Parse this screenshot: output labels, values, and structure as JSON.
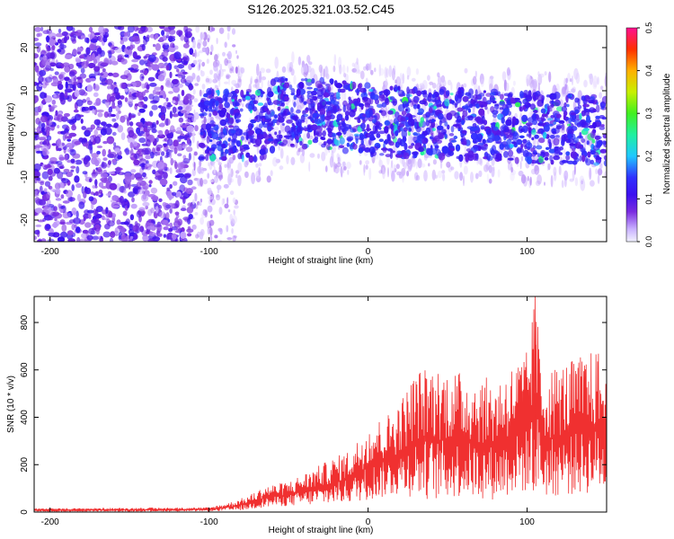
{
  "title": "S126.2025.321.03.52.C45",
  "chart_data": [
    {
      "type": "heatmap",
      "name": "spectrogram",
      "xlabel": "Height of straight line (km)",
      "ylabel": "Frequency (Hz)",
      "xlim": [
        -210,
        150
      ],
      "ylim": [
        -25,
        25
      ],
      "xticks": [
        -200,
        -100,
        0,
        100
      ],
      "yticks": [
        -20,
        -10,
        0,
        10,
        20
      ],
      "colorbar": {
        "label": "Normalized spectral amplitude",
        "range": [
          0,
          0.5
        ],
        "ticks": [
          0.0,
          0.1,
          0.2,
          0.3,
          0.4,
          0.5
        ]
      },
      "regions": [
        {
          "x_from": -210,
          "x_to": -110,
          "description_freq": [
            -25,
            25
          ],
          "amplitude": 0.05
        },
        {
          "x_from": -110,
          "x_to": -85,
          "description_freq": [
            -25,
            25
          ],
          "amplitude": 0.02
        },
        {
          "x_from": -105,
          "x_to": 150,
          "description_freq": [
            -8,
            10
          ],
          "amplitude": 0.12
        }
      ]
    },
    {
      "type": "line",
      "name": "snr",
      "xlabel": "Height of straight line (km)",
      "ylabel": "SNR (10 * v/v)",
      "xlim": [
        -210,
        150
      ],
      "ylim": [
        0,
        910
      ],
      "xticks": [
        -200,
        -100,
        0,
        100
      ],
      "yticks": [
        0,
        200,
        400,
        600,
        800
      ],
      "color": "#f03030",
      "envelope": {
        "x": [
          -210,
          -150,
          -100,
          -85,
          -75,
          -65,
          -50,
          -30,
          -10,
          0,
          10,
          20,
          30,
          40,
          60,
          80,
          90,
          100,
          105,
          110,
          130,
          145,
          150
        ],
        "max": [
          15,
          18,
          20,
          45,
          70,
          110,
          130,
          200,
          270,
          380,
          400,
          470,
          600,
          620,
          590,
          560,
          620,
          680,
          910,
          600,
          650,
          690,
          550
        ],
        "min": [
          2,
          2,
          3,
          5,
          10,
          20,
          25,
          30,
          40,
          50,
          60,
          70,
          60,
          50,
          60,
          50,
          70,
          80,
          80,
          60,
          70,
          80,
          80
        ]
      }
    }
  ]
}
